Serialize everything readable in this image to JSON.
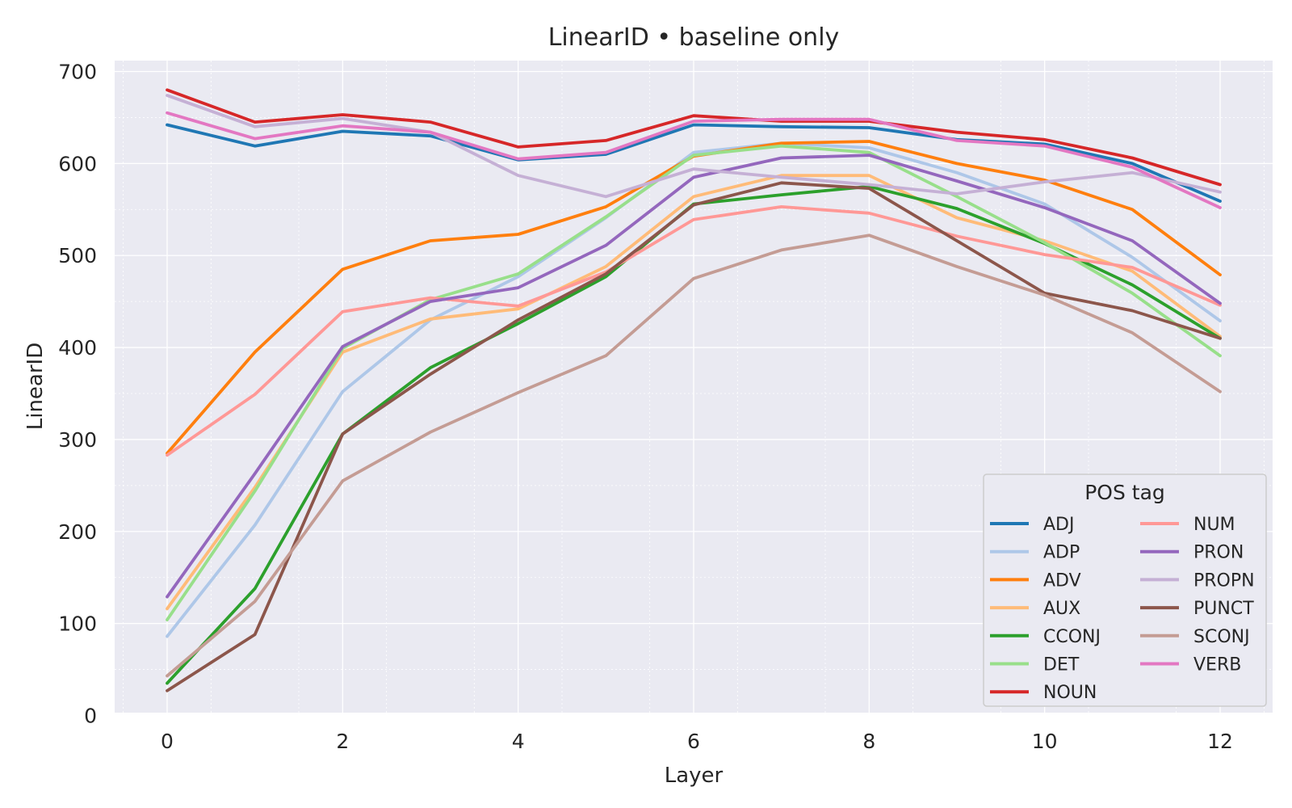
{
  "chart_data": {
    "type": "line",
    "title": "LinearID • baseline only",
    "xlabel": "Layer",
    "ylabel": "LinearID",
    "xlim": [
      -0.6,
      12.6
    ],
    "ylim": [
      0,
      700
    ],
    "xticks": [
      0,
      2,
      4,
      6,
      8,
      10,
      12
    ],
    "yticks": [
      0,
      100,
      200,
      300,
      400,
      500,
      600,
      700
    ],
    "grid": true,
    "legend": {
      "title": "POS tag",
      "placement": "bottom-right",
      "columns": 2
    },
    "x": [
      0,
      1,
      2,
      3,
      4,
      5,
      6,
      7,
      8,
      9,
      10,
      11,
      12
    ],
    "series": [
      {
        "name": "ADJ",
        "color": "#1f77b4",
        "values": [
          642,
          619,
          635,
          630,
          604,
          610,
          642,
          640,
          639,
          626,
          621,
          600,
          559
        ]
      },
      {
        "name": "ADP",
        "color": "#aec7e8",
        "values": [
          86,
          207,
          352,
          430,
          477,
          541,
          612,
          622,
          617,
          590,
          556,
          498,
          429
        ]
      },
      {
        "name": "ADV",
        "color": "#ff7f0e",
        "values": [
          285,
          395,
          485,
          516,
          523,
          553,
          608,
          622,
          624,
          600,
          582,
          550,
          479
        ]
      },
      {
        "name": "AUX",
        "color": "#ffbb78",
        "values": [
          116,
          248,
          395,
          431,
          442,
          488,
          564,
          587,
          587,
          541,
          516,
          483,
          412
        ]
      },
      {
        "name": "CCONJ",
        "color": "#2ca02c",
        "values": [
          35,
          138,
          306,
          378,
          426,
          477,
          556,
          566,
          575,
          551,
          513,
          468,
          410
        ]
      },
      {
        "name": "DET",
        "color": "#98df8a",
        "values": [
          104,
          244,
          399,
          452,
          480,
          542,
          609,
          619,
          612,
          564,
          514,
          459,
          391
        ]
      },
      {
        "name": "NOUN",
        "color": "#d62728",
        "values": [
          680,
          645,
          653,
          645,
          618,
          625,
          652,
          646,
          646,
          634,
          626,
          606,
          577
        ]
      },
      {
        "name": "NUM",
        "color": "#ff9896",
        "values": [
          283,
          349,
          439,
          454,
          445,
          482,
          539,
          553,
          546,
          521,
          501,
          487,
          446
        ]
      },
      {
        "name": "PRON",
        "color": "#9467bd",
        "values": [
          129,
          263,
          401,
          450,
          465,
          511,
          585,
          606,
          609,
          581,
          552,
          516,
          448
        ]
      },
      {
        "name": "PROPN",
        "color": "#c5b0d5",
        "values": [
          674,
          640,
          649,
          634,
          587,
          564,
          594,
          585,
          577,
          567,
          580,
          590,
          569
        ]
      },
      {
        "name": "PUNCT",
        "color": "#8c564b",
        "values": [
          27,
          88,
          306,
          371,
          430,
          480,
          555,
          579,
          573,
          516,
          459,
          440,
          410
        ]
      },
      {
        "name": "SCONJ",
        "color": "#c49c94",
        "values": [
          43,
          124,
          255,
          308,
          351,
          391,
          475,
          506,
          522,
          488,
          457,
          416,
          352
        ]
      },
      {
        "name": "VERB",
        "color": "#e377c2",
        "values": [
          655,
          627,
          641,
          634,
          605,
          612,
          646,
          648,
          648,
          625,
          619,
          596,
          552
        ]
      }
    ]
  }
}
